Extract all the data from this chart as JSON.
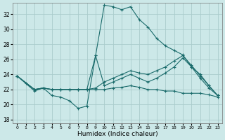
{
  "xlabel": "Humidex (Indice chaleur)",
  "bg_color": "#cce8e8",
  "grid_color": "#aacccc",
  "line_color": "#1a6b6b",
  "x_ticks": [
    0,
    1,
    2,
    3,
    4,
    5,
    6,
    7,
    8,
    9,
    10,
    11,
    12,
    13,
    14,
    15,
    16,
    17,
    18,
    19,
    20,
    21,
    22,
    23
  ],
  "y_ticks": [
    18,
    20,
    22,
    24,
    26,
    28,
    30,
    32
  ],
  "xlim": [
    -0.5,
    23.5
  ],
  "ylim": [
    17.5,
    33.5
  ],
  "lines": [
    {
      "x": [
        0,
        1,
        2,
        3,
        4,
        5,
        6,
        7,
        8,
        9,
        10,
        11,
        12,
        13,
        14,
        15,
        16,
        17,
        18,
        19,
        20,
        21,
        22,
        23
      ],
      "y": [
        23.8,
        22.8,
        21.8,
        22.2,
        21.2,
        21.0,
        20.5,
        19.5,
        19.8,
        26.5,
        33.2,
        33.0,
        32.6,
        33.0,
        31.3,
        30.3,
        28.8,
        27.8,
        27.2,
        26.6,
        25.0,
        23.5,
        22.2,
        21.2
      ]
    },
    {
      "x": [
        0,
        2,
        3,
        4,
        5,
        6,
        7,
        8,
        9,
        10,
        11,
        12,
        13,
        14,
        15,
        16,
        17,
        18,
        19,
        20,
        21,
        22,
        23
      ],
      "y": [
        23.8,
        22.0,
        22.2,
        22.0,
        22.0,
        22.0,
        22.0,
        22.0,
        22.2,
        23.0,
        23.5,
        24.0,
        24.5,
        24.2,
        24.0,
        24.5,
        25.0,
        25.8,
        26.5,
        25.2,
        23.8,
        22.5,
        21.2
      ]
    },
    {
      "x": [
        0,
        2,
        3,
        4,
        5,
        6,
        7,
        8,
        9,
        10,
        11,
        12,
        13,
        14,
        15,
        16,
        17,
        18,
        19,
        20,
        21,
        22,
        23
      ],
      "y": [
        23.8,
        22.0,
        22.2,
        22.0,
        22.0,
        22.0,
        22.0,
        22.0,
        26.5,
        22.5,
        23.0,
        23.5,
        24.0,
        23.5,
        23.0,
        23.5,
        24.2,
        25.0,
        26.2,
        25.0,
        24.0,
        22.5,
        21.2
      ]
    },
    {
      "x": [
        0,
        2,
        3,
        4,
        5,
        6,
        7,
        8,
        9,
        10,
        11,
        12,
        13,
        14,
        15,
        16,
        17,
        18,
        19,
        20,
        21,
        22,
        23
      ],
      "y": [
        23.8,
        22.0,
        22.2,
        22.0,
        22.0,
        22.0,
        22.0,
        22.0,
        22.0,
        22.0,
        22.2,
        22.3,
        22.5,
        22.3,
        22.0,
        22.0,
        21.8,
        21.8,
        21.5,
        21.5,
        21.5,
        21.3,
        21.0
      ]
    }
  ]
}
